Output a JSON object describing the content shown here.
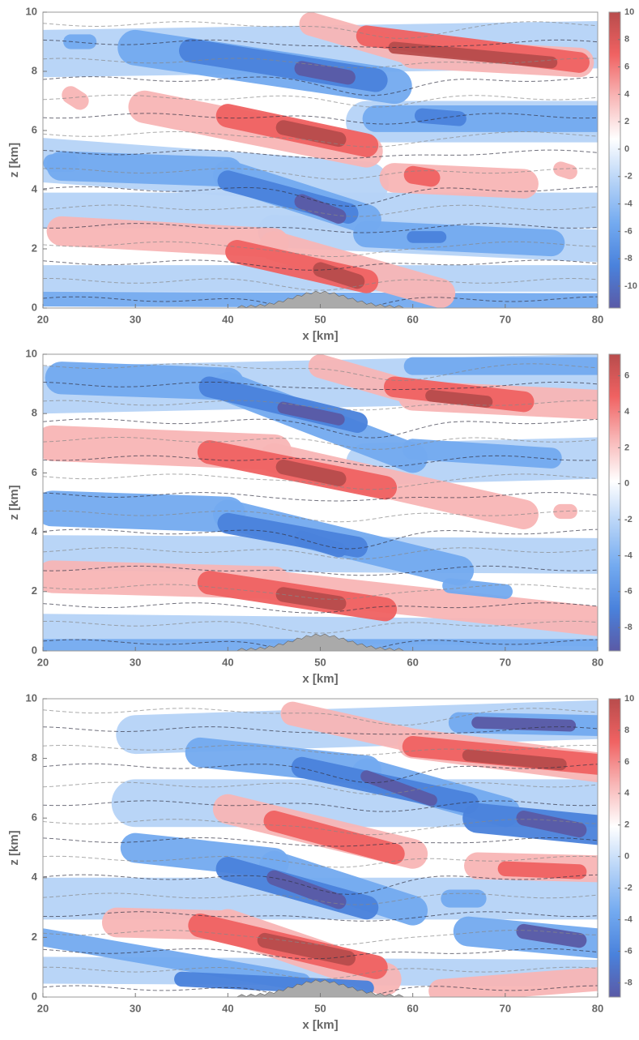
{
  "chart_data": [
    {
      "type": "contour",
      "xlabel": "x [km]",
      "ylabel": "z [km]",
      "xlim": [
        20,
        80
      ],
      "ylim": [
        0,
        10
      ],
      "xticks": [
        20,
        30,
        40,
        50,
        60,
        70,
        80
      ],
      "yticks": [
        0,
        2,
        4,
        6,
        8,
        10
      ],
      "clim": [
        -11.6,
        10
      ],
      "cticks": [
        -10,
        -8,
        -6,
        -4,
        -2,
        0,
        2,
        4,
        6,
        8,
        10
      ],
      "colormap": [
        "#5a5aa6",
        "#4a82dc",
        "#73aaf0",
        "#b6d3f7",
        "#ffffff",
        "#f8b6b6",
        "#f06262",
        "#b84c4c"
      ]
    },
    {
      "type": "contour",
      "xlabel": "x [km]",
      "ylabel": "z [km]",
      "xlim": [
        20,
        80
      ],
      "ylim": [
        0,
        10
      ],
      "xticks": [
        20,
        30,
        40,
        50,
        60,
        70,
        80
      ],
      "yticks": [
        0,
        2,
        4,
        6,
        8,
        10
      ],
      "clim": [
        -9.3,
        7.2
      ],
      "cticks": [
        -8,
        -6,
        -4,
        -2,
        0,
        2,
        4,
        6
      ],
      "colormap": [
        "#5a5aa6",
        "#4a82dc",
        "#73aaf0",
        "#b6d3f7",
        "#ffffff",
        "#f8b6b6",
        "#f06262",
        "#b84c4c"
      ]
    },
    {
      "type": "contour",
      "xlabel": "x [km]",
      "ylabel": "z [km]",
      "xlim": [
        20,
        80
      ],
      "ylim": [
        0,
        10
      ],
      "xticks": [
        20,
        30,
        40,
        50,
        60,
        70,
        80
      ],
      "yticks": [
        0,
        2,
        4,
        6,
        8,
        10
      ],
      "clim": [
        -8.9,
        10
      ],
      "cticks": [
        -8,
        -6,
        -4,
        -2,
        0,
        2,
        4,
        6,
        8,
        10
      ],
      "colormap": [
        "#5a5aa6",
        "#4a82dc",
        "#73aaf0",
        "#b6d3f7",
        "#ffffff",
        "#f8b6b6",
        "#f06262",
        "#b84c4c"
      ]
    }
  ]
}
